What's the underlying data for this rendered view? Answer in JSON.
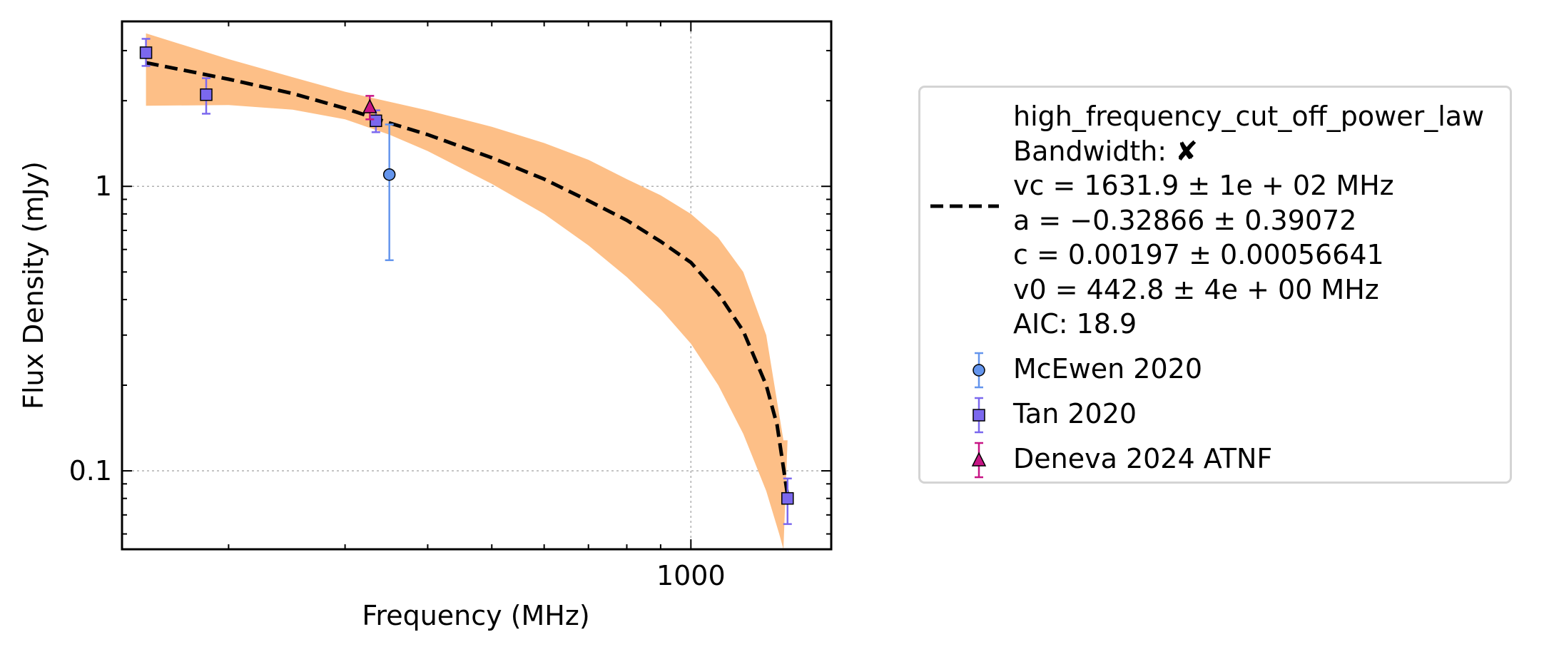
{
  "chart_data": {
    "type": "scatter",
    "xlabel": "Frequency (MHz)",
    "ylabel": "Flux Density (mJy)",
    "xscale": "log",
    "yscale": "log",
    "xlim": [
      138,
      1630
    ],
    "ylim": [
      0.053,
      3.8
    ],
    "xticks": [
      {
        "value": 1000,
        "label": "1000"
      }
    ],
    "yticks": [
      {
        "value": 0.1,
        "label": "0.1"
      },
      {
        "value": 1,
        "label": "1"
      }
    ],
    "grid": true,
    "legend_placement": "outside-right",
    "series": [
      {
        "name": "McEwen 2020",
        "marker": "circle",
        "color": "#6495ED",
        "points": [
          {
            "x": 350,
            "y": 1.1,
            "ylow": 0.55,
            "yhigh": 1.65
          }
        ]
      },
      {
        "name": "Tan 2020",
        "marker": "square",
        "color": "#7B68EE",
        "points": [
          {
            "x": 150,
            "y": 2.95,
            "ylow": 2.65,
            "yhigh": 3.3
          },
          {
            "x": 185,
            "y": 2.1,
            "ylow": 1.8,
            "yhigh": 2.4
          },
          {
            "x": 334,
            "y": 1.7,
            "ylow": 1.55,
            "yhigh": 1.85
          },
          {
            "x": 1400,
            "y": 0.08,
            "ylow": 0.065,
            "yhigh": 0.094
          }
        ]
      },
      {
        "name": "Deneva 2024 ATNF",
        "marker": "triangle",
        "color": "#C71585",
        "points": [
          {
            "x": 327,
            "y": 1.9,
            "ylow": 1.72,
            "yhigh": 2.08
          }
        ]
      }
    ],
    "fit": {
      "name": "high_frequency_cut_off_power_law",
      "style": "dashed",
      "color": "#000000",
      "band_color": "#FDBF87",
      "line": [
        {
          "x": 150,
          "y": 2.72
        },
        {
          "x": 200,
          "y": 2.38
        },
        {
          "x": 250,
          "y": 2.12
        },
        {
          "x": 300,
          "y": 1.88
        },
        {
          "x": 350,
          "y": 1.67
        },
        {
          "x": 400,
          "y": 1.52
        },
        {
          "x": 500,
          "y": 1.26
        },
        {
          "x": 600,
          "y": 1.06
        },
        {
          "x": 700,
          "y": 0.89
        },
        {
          "x": 800,
          "y": 0.76
        },
        {
          "x": 900,
          "y": 0.64
        },
        {
          "x": 1000,
          "y": 0.54
        },
        {
          "x": 1100,
          "y": 0.42
        },
        {
          "x": 1200,
          "y": 0.31
        },
        {
          "x": 1300,
          "y": 0.2
        },
        {
          "x": 1350,
          "y": 0.145
        },
        {
          "x": 1400,
          "y": 0.082
        }
      ],
      "band_upper": [
        {
          "x": 150,
          "y": 3.45
        },
        {
          "x": 200,
          "y": 2.8
        },
        {
          "x": 250,
          "y": 2.42
        },
        {
          "x": 300,
          "y": 2.15
        },
        {
          "x": 400,
          "y": 1.85
        },
        {
          "x": 500,
          "y": 1.62
        },
        {
          "x": 600,
          "y": 1.42
        },
        {
          "x": 700,
          "y": 1.24
        },
        {
          "x": 800,
          "y": 1.06
        },
        {
          "x": 900,
          "y": 0.93
        },
        {
          "x": 1000,
          "y": 0.8
        },
        {
          "x": 1100,
          "y": 0.66
        },
        {
          "x": 1200,
          "y": 0.5
        },
        {
          "x": 1300,
          "y": 0.3
        },
        {
          "x": 1380,
          "y": 0.128
        },
        {
          "x": 1400,
          "y": 0.128
        }
      ],
      "band_lower": [
        {
          "x": 150,
          "y": 1.92
        },
        {
          "x": 200,
          "y": 1.93
        },
        {
          "x": 250,
          "y": 1.86
        },
        {
          "x": 300,
          "y": 1.72
        },
        {
          "x": 350,
          "y": 1.52
        },
        {
          "x": 400,
          "y": 1.33
        },
        {
          "x": 500,
          "y": 1.02
        },
        {
          "x": 600,
          "y": 0.8
        },
        {
          "x": 700,
          "y": 0.62
        },
        {
          "x": 800,
          "y": 0.48
        },
        {
          "x": 900,
          "y": 0.37
        },
        {
          "x": 1000,
          "y": 0.28
        },
        {
          "x": 1100,
          "y": 0.2
        },
        {
          "x": 1200,
          "y": 0.135
        },
        {
          "x": 1300,
          "y": 0.085
        },
        {
          "x": 1360,
          "y": 0.06
        },
        {
          "x": 1380,
          "y": 0.053
        }
      ]
    }
  },
  "legend": {
    "fit_lines": [
      "high_frequency_cut_off_power_law",
      "Bandwidth: ✘",
      "vc = 1631.9 ± 1e + 02 MHz",
      "a = −0.32866 ± 0.39072",
      "c = 0.00197 ± 0.00056641",
      "v0 = 442.8 ± 4e + 00 MHz",
      "AIC: 18.9"
    ],
    "entries": [
      {
        "label": "McEwen 2020"
      },
      {
        "label": "Tan 2020"
      },
      {
        "label": "Deneva 2024 ATNF"
      }
    ]
  }
}
